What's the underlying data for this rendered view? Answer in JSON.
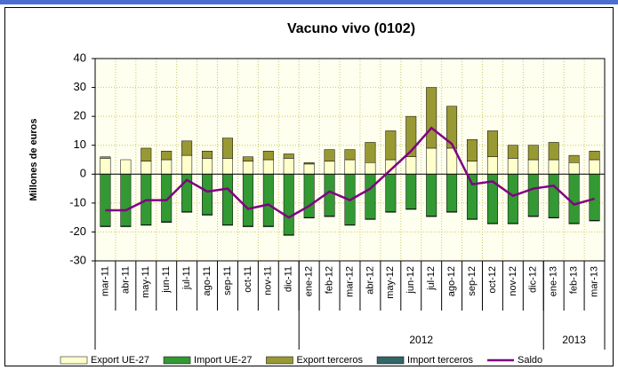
{
  "chart_data": {
    "type": "stacked_bar_line",
    "title": "Vacuno vivo (0102)",
    "y_label": "Millones de euros",
    "categories": [
      "mar-11",
      "abr-11",
      "may-11",
      "jun-11",
      "jul-11",
      "ago-11",
      "sep-11",
      "oct-11",
      "nov-11",
      "dic-11",
      "ene-12",
      "feb-12",
      "mar-12",
      "abr-12",
      "may-12",
      "jun-12",
      "jul-12",
      "ago-12",
      "sep-12",
      "oct-12",
      "nov-12",
      "dic-12",
      "ene-13",
      "feb-13",
      "mar-13"
    ],
    "category_years": [
      null,
      null,
      null,
      null,
      null,
      null,
      null,
      null,
      null,
      null,
      "2012",
      "2012",
      "2012",
      "2012",
      "2012",
      "2012",
      "2012",
      "2012",
      "2012",
      "2012",
      "2012",
      "2012",
      "2013",
      "2013",
      "2013"
    ],
    "series": [
      {
        "name": "Export UE-27",
        "color": "#ffffcc",
        "kind": "bar",
        "values": [
          5.5,
          5,
          4.5,
          5,
          6.5,
          5.5,
          5.5,
          4.5,
          5,
          5.5,
          3.5,
          4.5,
          5,
          4,
          5,
          6,
          9,
          9,
          4.5,
          6,
          5.5,
          5,
          5,
          4,
          5
        ]
      },
      {
        "name": "Import UE-27",
        "color": "#339933",
        "kind": "bar",
        "values": [
          -18,
          -18,
          -17.5,
          -16.5,
          -13,
          -14,
          -17.5,
          -18,
          -18,
          -21,
          -15,
          -14.5,
          -17.5,
          -15.5,
          -13,
          -12,
          -14.5,
          -13,
          -15.5,
          -17,
          -17,
          -14.5,
          -15,
          -17,
          -16
        ]
      },
      {
        "name": "Export terceros",
        "color": "#999933",
        "kind": "bar",
        "values": [
          0.5,
          0,
          4.5,
          3,
          5,
          2.5,
          7,
          1.5,
          3,
          1.5,
          0.5,
          4,
          3.5,
          7,
          10,
          14,
          21,
          14.5,
          7.5,
          9,
          4.5,
          5,
          6,
          2.5,
          3
        ]
      },
      {
        "name": "Import terceros",
        "color": "#336666",
        "kind": "bar",
        "values": [
          -0.2,
          -0.2,
          -0.2,
          -0.2,
          -0.2,
          -0.2,
          -0.2,
          -0.2,
          -0.2,
          -0.2,
          -0.2,
          -0.2,
          -0.2,
          -0.2,
          -0.2,
          -0.2,
          -0.2,
          -0.2,
          -0.2,
          -0.2,
          -0.2,
          -0.2,
          -0.2,
          -0.2,
          -0.2
        ]
      },
      {
        "name": "Saldo",
        "color": "#800080",
        "kind": "line",
        "values": [
          -12.5,
          -12.5,
          -9,
          -9,
          -2,
          -6,
          -5,
          -12,
          -10.5,
          -15,
          -11,
          -6,
          -9,
          -5,
          1.5,
          8,
          16,
          10.5,
          -3.5,
          -2.5,
          -7.5,
          -5,
          -4,
          -10.5,
          -8.5
        ]
      }
    ],
    "ylim": [
      -30,
      40
    ],
    "yticks": [
      -30,
      -20,
      -10,
      0,
      10,
      20,
      30,
      40
    ],
    "grid": true
  }
}
